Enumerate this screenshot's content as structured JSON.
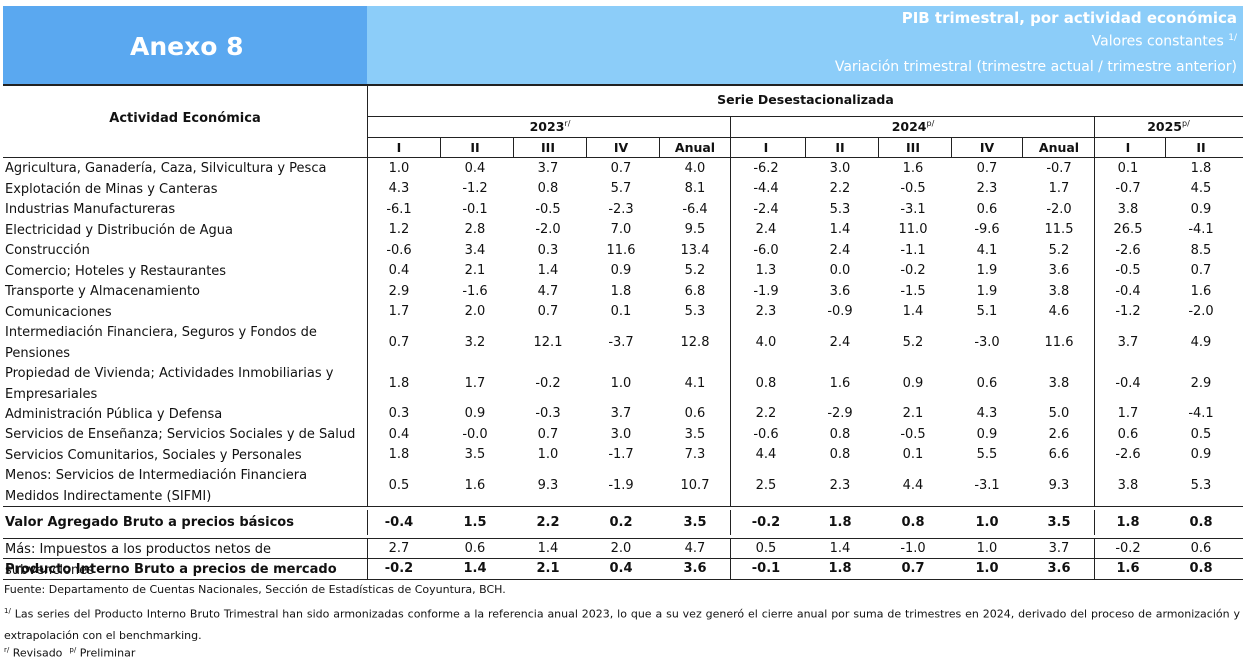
{
  "header": {
    "annex": "Anexo 8",
    "title": "PIB trimestral, por actividad económica",
    "subtitle": "Valores constantes",
    "subtitle_note": "1/",
    "subtitle2": "Variación trimestral (trimestre actual / trimestre anterior)"
  },
  "columns": {
    "activity_label": "Actividad Económica",
    "series_label": "Serie Desestacionalizada",
    "years": [
      {
        "label": "2023",
        "mark": "r/"
      },
      {
        "label": "2024",
        "mark": "p/"
      },
      {
        "label": "2025",
        "mark": "p/"
      }
    ],
    "quarters": [
      "I",
      "II",
      "III",
      "IV",
      "Anual",
      "I",
      "II",
      "III",
      "IV",
      "Anual",
      "I",
      "II"
    ]
  },
  "rows": [
    {
      "name": "Agricultura, Ganadería, Caza, Silvicultura y Pesca",
      "values": [
        "1.0",
        "0.4",
        "3.7",
        "0.7",
        "4.0",
        "-6.2",
        "3.0",
        "1.6",
        "0.7",
        "-0.7",
        "0.1",
        "1.8"
      ]
    },
    {
      "name": "Explotación de Minas y Canteras",
      "values": [
        "4.3",
        "-1.2",
        "0.8",
        "5.7",
        "8.1",
        "-4.4",
        "2.2",
        "-0.5",
        "2.3",
        "1.7",
        "-0.7",
        "4.5"
      ]
    },
    {
      "name": "Industrias Manufactureras",
      "values": [
        "-6.1",
        "-0.1",
        "-0.5",
        "-2.3",
        "-6.4",
        "-2.4",
        "5.3",
        "-3.1",
        "0.6",
        "-2.0",
        "3.8",
        "0.9"
      ]
    },
    {
      "name": "Electricidad y Distribución de Agua",
      "values": [
        "1.2",
        "2.8",
        "-2.0",
        "7.0",
        "9.5",
        "2.4",
        "1.4",
        "11.0",
        "-9.6",
        "11.5",
        "26.5",
        "-4.1"
      ]
    },
    {
      "name": "Construcción",
      "values": [
        "-0.6",
        "3.4",
        "0.3",
        "11.6",
        "13.4",
        "-6.0",
        "2.4",
        "-1.1",
        "4.1",
        "5.2",
        "-2.6",
        "8.5"
      ]
    },
    {
      "name": "Comercio; Hoteles y Restaurantes",
      "values": [
        "0.4",
        "2.1",
        "1.4",
        "0.9",
        "5.2",
        "1.3",
        "0.0",
        "-0.2",
        "1.9",
        "3.6",
        "-0.5",
        "0.7"
      ]
    },
    {
      "name": "Transporte y Almacenamiento",
      "values": [
        "2.9",
        "-1.6",
        "4.7",
        "1.8",
        "6.8",
        "-1.9",
        "3.6",
        "-1.5",
        "1.9",
        "3.8",
        "-0.4",
        "1.6"
      ]
    },
    {
      "name": "Comunicaciones",
      "values": [
        "1.7",
        "2.0",
        "0.7",
        "0.1",
        "5.3",
        "2.3",
        "-0.9",
        "1.4",
        "5.1",
        "4.6",
        "-1.2",
        "-2.0"
      ]
    },
    {
      "name": "Intermediación Financiera, Seguros y Fondos de Pensiones",
      "values": [
        "0.7",
        "3.2",
        "12.1",
        "-3.7",
        "12.8",
        "4.0",
        "2.4",
        "5.2",
        "-3.0",
        "11.6",
        "3.7",
        "4.9"
      ]
    },
    {
      "name": "Propiedad de Vivienda; Actividades Inmobiliarias y Empresariales",
      "values": [
        "1.8",
        "1.7",
        "-0.2",
        "1.0",
        "4.1",
        "0.8",
        "1.6",
        "0.9",
        "0.6",
        "3.8",
        "-0.4",
        "2.9"
      ]
    },
    {
      "name": "Administración Pública y Defensa",
      "values": [
        "0.3",
        "0.9",
        "-0.3",
        "3.7",
        "0.6",
        "2.2",
        "-2.9",
        "2.1",
        "4.3",
        "5.0",
        "1.7",
        "-4.1"
      ]
    },
    {
      "name": "Servicios de Enseñanza; Servicios Sociales y de Salud",
      "values": [
        "0.4",
        "-0.0",
        "0.7",
        "3.0",
        "3.5",
        "-0.6",
        "0.8",
        "-0.5",
        "0.9",
        "2.6",
        "0.6",
        "0.5"
      ]
    },
    {
      "name": "Servicios Comunitarios, Sociales y Personales",
      "values": [
        "1.8",
        "3.5",
        "1.0",
        "-1.7",
        "7.3",
        "4.4",
        "0.8",
        "0.1",
        "5.5",
        "6.6",
        "-2.6",
        "0.9"
      ]
    },
    {
      "name": "Menos: Servicios de Intermediación Financiera Medidos Indirectamente (SIFMI)",
      "values": [
        "0.5",
        "1.6",
        "9.3",
        "-1.9",
        "10.7",
        "2.5",
        "2.3",
        "4.4",
        "-3.1",
        "9.3",
        "3.8",
        "5.3"
      ]
    },
    {
      "name": "Valor Agregado Bruto a precios básicos",
      "values": [
        "-0.4",
        "1.5",
        "2.2",
        "0.2",
        "3.5",
        "-0.2",
        "1.8",
        "0.8",
        "1.0",
        "3.5",
        "1.8",
        "0.8"
      ]
    },
    {
      "name": "Más: Impuestos a los productos netos de subvenciones",
      "values": [
        "2.7",
        "0.6",
        "1.4",
        "2.0",
        "4.7",
        "0.5",
        "1.4",
        "-1.0",
        "1.0",
        "3.7",
        "-0.2",
        "0.6"
      ]
    },
    {
      "name": "Producto Interno Bruto a precios de mercado",
      "values": [
        "-0.2",
        "1.4",
        "2.1",
        "0.4",
        "3.6",
        "-0.1",
        "1.8",
        "0.7",
        "1.0",
        "3.6",
        "1.6",
        "0.8"
      ]
    }
  ],
  "footer": {
    "source": "Fuente: Departamento de Cuentas Nacionales, Sección de Estadísticas de Coyuntura, BCH.",
    "note1_mark": "1/",
    "note1_text": " Las series del Producto Interno Bruto Trimestral han sido armonizadas conforme a la referencia anual 2023, lo que a su vez generó el cierre anual por suma de trimestres en 2024, derivado del proceso de armonización y extrapolación con el benchmarking.",
    "revised_mark": "r/",
    "revised_text": " Revisado",
    "prelim_mark": "p/",
    "prelim_text": " Preliminar"
  }
}
